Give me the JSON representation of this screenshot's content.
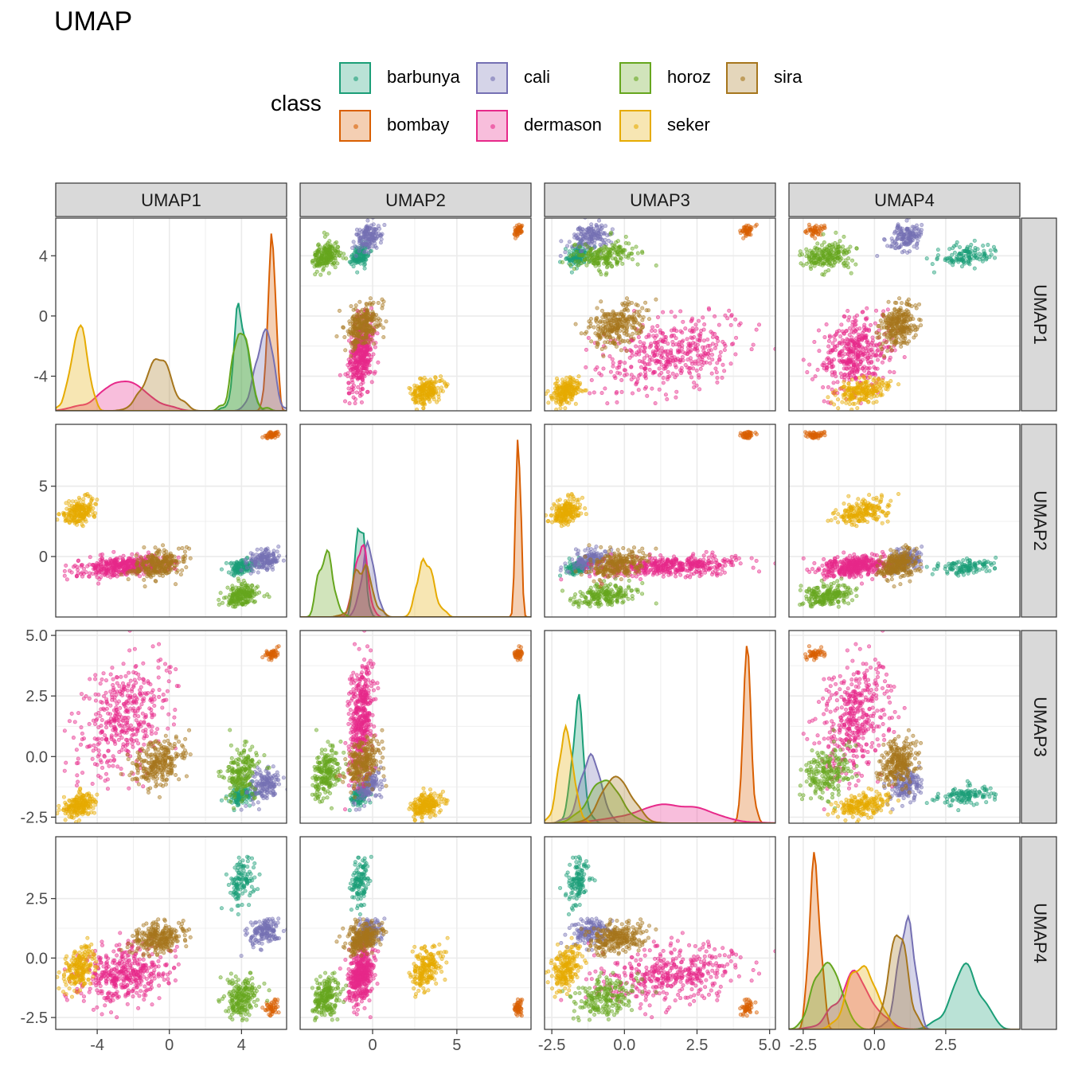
{
  "title": "UMAP",
  "legend": {
    "title": "class",
    "items": [
      {
        "label": "barbunya",
        "color": "#1B9E77"
      },
      {
        "label": "bombay",
        "color": "#D95F02"
      },
      {
        "label": "cali",
        "color": "#7570B3"
      },
      {
        "label": "dermason",
        "color": "#E7298A"
      },
      {
        "label": "horoz",
        "color": "#66A61E"
      },
      {
        "label": "seker",
        "color": "#E6AB02"
      },
      {
        "label": "sira",
        "color": "#A6761D"
      }
    ]
  },
  "chart_data": {
    "type": "scatter",
    "layout": "scatterplot matrix (off-diagonal scatter, diagonal density)",
    "variables": [
      "UMAP1",
      "UMAP2",
      "UMAP3",
      "UMAP4"
    ],
    "ranges": {
      "UMAP1": [
        -6.3,
        6.5
      ],
      "UMAP2": [
        -4.3,
        9.4
      ],
      "UMAP3": [
        -2.75,
        5.2
      ],
      "UMAP4": [
        -3.0,
        5.1
      ]
    },
    "ticks": {
      "UMAP1": {
        "values": [
          -4,
          0,
          4
        ],
        "labels": [
          "-4",
          "0",
          "4"
        ]
      },
      "UMAP2": {
        "values": [
          0,
          5
        ],
        "labels": [
          "0",
          "5"
        ]
      },
      "UMAP3": {
        "values": [
          -2.5,
          0.0,
          2.5,
          5.0
        ],
        "labels": [
          "-2.5",
          "0.0",
          "2.5",
          "5.0"
        ]
      },
      "UMAP4": {
        "values": [
          -2.5,
          0.0,
          2.5
        ],
        "labels": [
          "-2.5",
          "0.0",
          "2.5"
        ]
      }
    },
    "grid": true,
    "legend_position": "top",
    "clusters": [
      {
        "class": "barbunya",
        "points": 120,
        "center": {
          "UMAP1": 4.0,
          "UMAP2": -0.75,
          "UMAP3": -1.6,
          "UMAP4": 3.2
        },
        "spread": {
          "UMAP1": 0.35,
          "UMAP2": 0.25,
          "UMAP3": 0.2,
          "UMAP4": 0.55
        }
      },
      {
        "class": "bombay",
        "points": 45,
        "center": {
          "UMAP1": 5.6,
          "UMAP2": 8.6,
          "UMAP3": 4.2,
          "UMAP4": -2.1
        },
        "spread": {
          "UMAP1": 0.25,
          "UMAP2": 0.15,
          "UMAP3": 0.12,
          "UMAP4": 0.18
        }
      },
      {
        "class": "cali",
        "points": 150,
        "center": {
          "UMAP1": 5.3,
          "UMAP2": -0.3,
          "UMAP3": -1.2,
          "UMAP4": 1.1
        },
        "spread": {
          "UMAP1": 0.45,
          "UMAP2": 0.4,
          "UMAP3": 0.35,
          "UMAP4": 0.3
        }
      },
      {
        "class": "dermason",
        "points": 420,
        "center": {
          "UMAP1": -2.6,
          "UMAP2": -0.7,
          "UMAP3": 1.6,
          "UMAP4": -0.7
        },
        "spread": {
          "UMAP1": 1.3,
          "UMAP2": 0.35,
          "UMAP3": 1.2,
          "UMAP4": 0.6
        }
      },
      {
        "class": "horoz",
        "points": 200,
        "center": {
          "UMAP1": 4.0,
          "UMAP2": -2.8,
          "UMAP3": -0.7,
          "UMAP4": -1.7
        },
        "spread": {
          "UMAP1": 0.45,
          "UMAP2": 0.4,
          "UMAP3": 0.55,
          "UMAP4": 0.45
        }
      },
      {
        "class": "seker",
        "points": 200,
        "center": {
          "UMAP1": -5.0,
          "UMAP2": 3.2,
          "UMAP3": -2.0,
          "UMAP4": -0.4
        },
        "spread": {
          "UMAP1": 0.45,
          "UMAP2": 0.45,
          "UMAP3": 0.22,
          "UMAP4": 0.45
        }
      },
      {
        "class": "sira",
        "points": 260,
        "center": {
          "UMAP1": -0.6,
          "UMAP2": -0.6,
          "UMAP3": -0.3,
          "UMAP4": 0.8
        },
        "spread": {
          "UMAP1": 0.7,
          "UMAP2": 0.5,
          "UMAP3": 0.5,
          "UMAP4": 0.3
        }
      }
    ]
  }
}
